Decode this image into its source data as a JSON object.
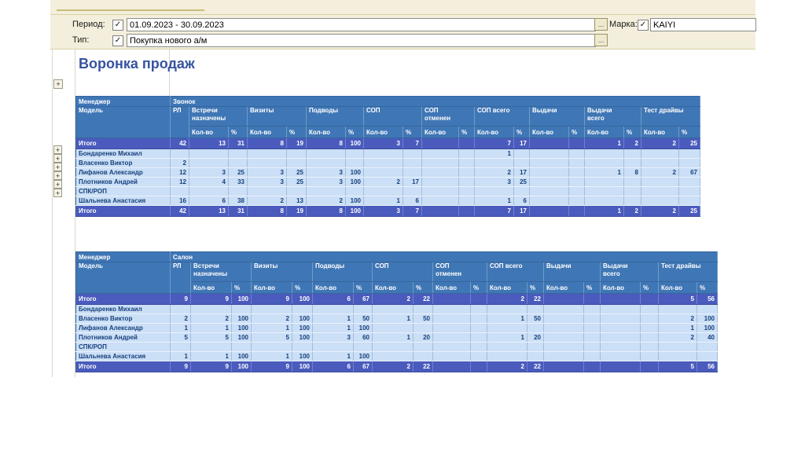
{
  "app": {
    "filters": {
      "period_label": "Период:",
      "period_value": "01.09.2023 - 30.09.2023",
      "type_label": "Тип:",
      "type_value": "Покупка нового а/м",
      "brand_label": "Марка:",
      "brand_value": "KAIYI",
      "more_button": "...",
      "checkbox_glyph": "✓",
      "expander_glyph": "+"
    },
    "report_title": "Воронка продаж"
  },
  "colors": {
    "header_bg": "#3f76b5",
    "total_row_bg": "#4a5bbd",
    "data_row_bg": "#cbdff6",
    "panel_bg": "#f3efdc",
    "title_text": "#36539e",
    "data_text": "#16407c"
  },
  "tables": [
    {
      "manager_label": "Менеджер",
      "section_label": "Звонок",
      "model_label": "Модель",
      "rl_label": "РЛ",
      "groups": [
        "Встречи\nназначены",
        "Визиты",
        "Подводы",
        "СОП",
        "СОП\nотменен",
        "СОП всего",
        "Выдачи",
        "Выдачи\nвсего",
        "Тест драйвы"
      ],
      "sub_labels": [
        "Кол-во",
        "%"
      ],
      "rows": [
        {
          "name": "Итого",
          "type": "total",
          "expander": false,
          "values": [
            "42",
            "13",
            "31",
            "8",
            "19",
            "8",
            "100",
            "3",
            "7",
            "",
            "",
            "7",
            "17",
            "",
            "",
            "1",
            "2",
            "2",
            "25"
          ]
        },
        {
          "name": "Бондаренко Михаил",
          "type": "data",
          "expander": true,
          "values": [
            "",
            "",
            "",
            "",
            "",
            "",
            "",
            "",
            "",
            "",
            "",
            "1",
            "",
            "",
            "",
            "",
            "",
            "",
            ""
          ]
        },
        {
          "name": "Власенко Виктор",
          "type": "data",
          "expander": true,
          "values": [
            "2",
            "",
            "",
            "",
            "",
            "",
            "",
            "",
            "",
            "",
            "",
            "",
            "",
            "",
            "",
            "",
            "",
            "",
            ""
          ]
        },
        {
          "name": "Лифанов Александр",
          "type": "data",
          "expander": true,
          "values": [
            "12",
            "3",
            "25",
            "3",
            "25",
            "3",
            "100",
            "",
            "",
            "",
            "",
            "2",
            "17",
            "",
            "",
            "1",
            "8",
            "2",
            "67"
          ]
        },
        {
          "name": "Плотников Андрей",
          "type": "data",
          "expander": true,
          "values": [
            "12",
            "4",
            "33",
            "3",
            "25",
            "3",
            "100",
            "2",
            "17",
            "",
            "",
            "3",
            "25",
            "",
            "",
            "",
            "",
            "",
            ""
          ]
        },
        {
          "name": "СПК/РОП",
          "type": "data",
          "expander": true,
          "values": [
            "",
            "",
            "",
            "",
            "",
            "",
            "",
            "",
            "",
            "",
            "",
            "",
            "",
            "",
            "",
            "",
            "",
            "",
            ""
          ]
        },
        {
          "name": "Шальнева Анастасия",
          "type": "data",
          "expander": true,
          "values": [
            "16",
            "6",
            "38",
            "2",
            "13",
            "2",
            "100",
            "1",
            "6",
            "",
            "",
            "1",
            "6",
            "",
            "",
            "",
            "",
            "",
            ""
          ]
        },
        {
          "name": "Итого",
          "type": "total",
          "expander": false,
          "values": [
            "42",
            "13",
            "31",
            "8",
            "19",
            "8",
            "100",
            "3",
            "7",
            "",
            "",
            "7",
            "17",
            "",
            "",
            "1",
            "2",
            "2",
            "25"
          ]
        }
      ]
    },
    {
      "manager_label": "Менеджер",
      "section_label": "Салон",
      "model_label": "Модель",
      "rl_label": "РЛ",
      "groups": [
        "Встречи\nназначены",
        "Визиты",
        "Подводы",
        "СОП",
        "СОП\nотменен",
        "СОП всего",
        "Выдачи",
        "Выдачи\nвсего",
        "Тест драйвы"
      ],
      "sub_labels": [
        "Кол-во",
        "%"
      ],
      "rows": [
        {
          "name": "Итого",
          "type": "total",
          "expander": false,
          "values": [
            "9",
            "9",
            "100",
            "9",
            "100",
            "6",
            "67",
            "2",
            "22",
            "",
            "",
            "2",
            "22",
            "",
            "",
            "",
            "",
            "5",
            "56"
          ]
        },
        {
          "name": "Бондаренко Михаил",
          "type": "data",
          "expander": false,
          "values": [
            "",
            "",
            "",
            "",
            "",
            "",
            "",
            "",
            "",
            "",
            "",
            "",
            "",
            "",
            "",
            "",
            "",
            "",
            ""
          ]
        },
        {
          "name": "Власенко Виктор",
          "type": "data",
          "expander": false,
          "values": [
            "2",
            "2",
            "100",
            "2",
            "100",
            "1",
            "50",
            "1",
            "50",
            "",
            "",
            "1",
            "50",
            "",
            "",
            "",
            "",
            "2",
            "100"
          ]
        },
        {
          "name": "Лифанов Александр",
          "type": "data",
          "expander": false,
          "values": [
            "1",
            "1",
            "100",
            "1",
            "100",
            "1",
            "100",
            "",
            "",
            "",
            "",
            "",
            "",
            "",
            "",
            "",
            "",
            "1",
            "100"
          ]
        },
        {
          "name": "Плотников Андрей",
          "type": "data",
          "expander": false,
          "values": [
            "5",
            "5",
            "100",
            "5",
            "100",
            "3",
            "60",
            "1",
            "20",
            "",
            "",
            "1",
            "20",
            "",
            "",
            "",
            "",
            "2",
            "40"
          ]
        },
        {
          "name": "СПК/РОП",
          "type": "data",
          "expander": false,
          "values": [
            "",
            "",
            "",
            "",
            "",
            "",
            "",
            "",
            "",
            "",
            "",
            "",
            "",
            "",
            "",
            "",
            "",
            "",
            ""
          ]
        },
        {
          "name": "Шальнева Анастасия",
          "type": "data",
          "expander": false,
          "values": [
            "1",
            "1",
            "100",
            "1",
            "100",
            "1",
            "100",
            "",
            "",
            "",
            "",
            "",
            "",
            "",
            "",
            "",
            "",
            "",
            ""
          ]
        },
        {
          "name": "Итого",
          "type": "total",
          "expander": false,
          "values": [
            "9",
            "9",
            "100",
            "9",
            "100",
            "6",
            "67",
            "2",
            "22",
            "",
            "",
            "2",
            "22",
            "",
            "",
            "",
            "",
            "5",
            "56"
          ]
        }
      ]
    }
  ]
}
